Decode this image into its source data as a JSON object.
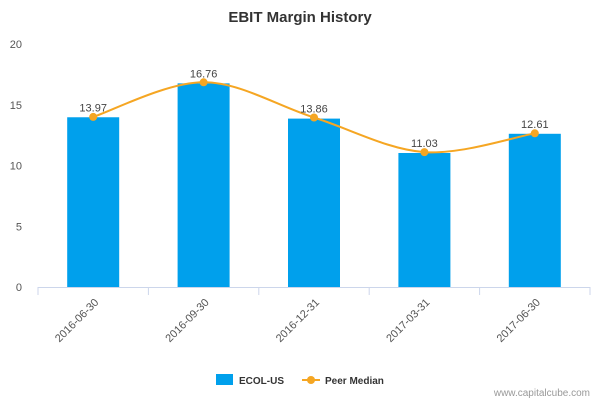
{
  "chart_data": {
    "type": "bar",
    "title": "EBIT Margin History",
    "categories": [
      "2016-06-30",
      "2016-09-30",
      "2016-12-31",
      "2017-03-31",
      "2017-06-30"
    ],
    "series": [
      {
        "name": "ECOL-US",
        "kind": "bar",
        "values": [
          13.97,
          16.76,
          13.86,
          11.03,
          12.61
        ],
        "color": "#00a0ec"
      },
      {
        "name": "Peer Median",
        "kind": "line",
        "values": [
          14.0,
          16.85,
          13.95,
          11.1,
          12.65
        ],
        "color": "#f5a623"
      }
    ],
    "data_labels": [
      "13.97",
      "16.76",
      "13.86",
      "11.03",
      "12.61"
    ],
    "ylim": [
      0,
      20
    ],
    "yticks": [
      0,
      5,
      10,
      15,
      20
    ],
    "xlabel": "",
    "ylabel": "",
    "legend_position": "bottom-center"
  },
  "credit": "www.capitalcube.com",
  "colors": {
    "axis": "#ccd6eb",
    "grid": "#e6e6e6"
  }
}
